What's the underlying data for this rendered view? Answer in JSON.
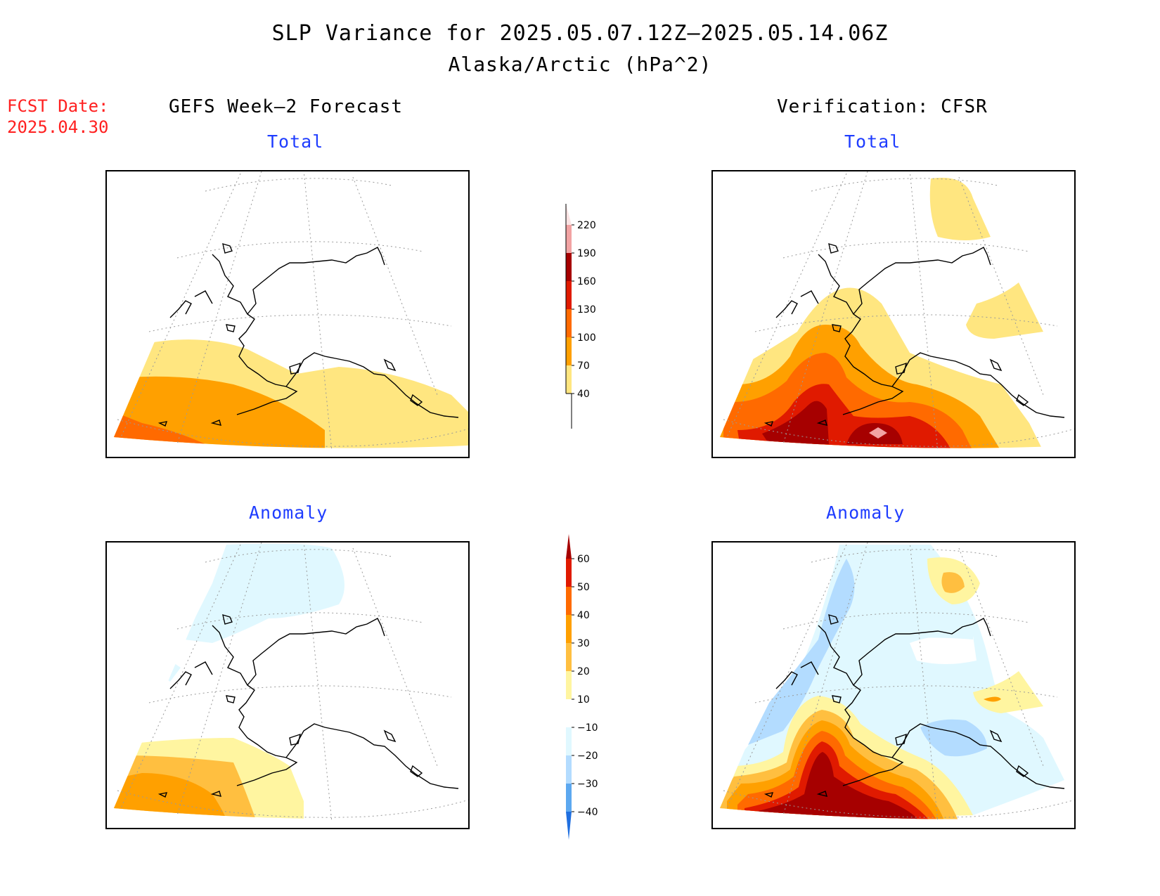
{
  "title": {
    "line1": "SLP Variance for 2025.05.07.12Z–2025.05.14.06Z",
    "line2": "Alaska/Arctic (hPa^2)"
  },
  "fcst_date": "FCST Date:\n2025.04.30",
  "columns": {
    "left": "GEFS Week–2 Forecast",
    "right": "Verification: CFSR"
  },
  "subtitles": {
    "total": "Total",
    "anomaly": "Anomaly"
  },
  "colorbars": {
    "total": {
      "levels": [
        "220",
        "190",
        "160",
        "130",
        "100",
        "70",
        "40"
      ],
      "colors": [
        "#fbe3e3",
        "#f2a3a3",
        "#a60000",
        "#e01a00",
        "#ff6a00",
        "#ffa000",
        "#ffe680"
      ]
    },
    "anomaly": {
      "levels": [
        "60",
        "50",
        "40",
        "30",
        "20",
        "10",
        "−10",
        "−20",
        "−30",
        "−40"
      ],
      "colors": [
        "#a60000",
        "#e01a00",
        "#ff6a00",
        "#ffa000",
        "#ffbf40",
        "#fff5a0",
        "#ffffff",
        "#e0f8ff",
        "#b3dcff",
        "#5ca8f0",
        "#1f6fe0"
      ]
    }
  },
  "panels": [
    {
      "name": "gefs-total-map",
      "description_colors": {
        "c40": "#ffe680",
        "c70": "#ffa000",
        "c100": "#ff6a00",
        "c130": "#e01a00",
        "c160": "#a60000",
        "c190": "#f2a3a3"
      }
    },
    {
      "name": "cfsr-total-map"
    },
    {
      "name": "gefs-anomaly-map"
    },
    {
      "name": "cfsr-anomaly-map"
    }
  ]
}
